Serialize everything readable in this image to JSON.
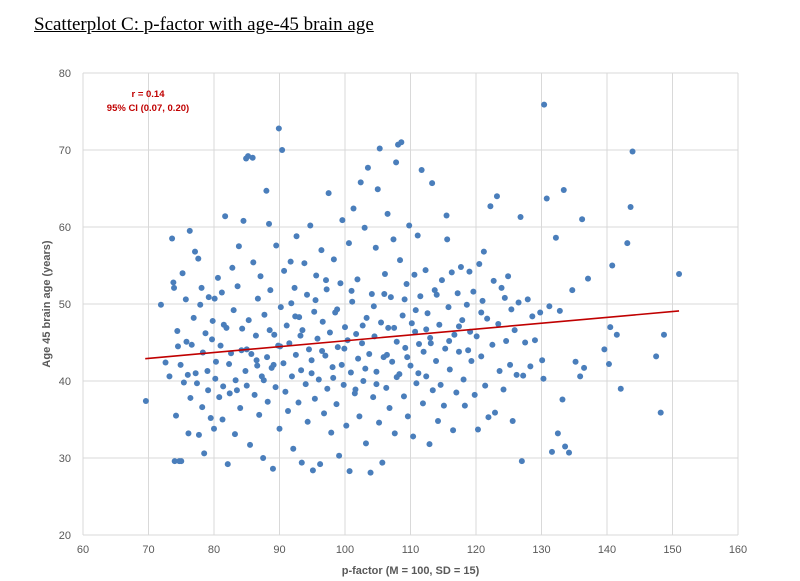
{
  "page_title": "Scatterplot C: p-factor with age-45 brain age",
  "chart_data": {
    "type": "scatter",
    "title": "Scatterplot C: p-factor with age-45 brain age",
    "xlabel": "p-factor (M = 100, SD = 15)",
    "ylabel": "Age 45 brain age (years)",
    "xlim": [
      60,
      160
    ],
    "ylim": [
      20,
      80
    ],
    "xticks": [
      60,
      70,
      80,
      90,
      100,
      110,
      120,
      130,
      140,
      150,
      160
    ],
    "yticks": [
      20,
      30,
      40,
      50,
      60,
      70,
      80
    ],
    "grid": true,
    "legend": "none",
    "point_color": "#4a7ebb",
    "fit_line_color": "#c00000",
    "annotations": [
      "r = 0.14",
      "95% CI (0.07, 0.20)"
    ],
    "fit_line": {
      "x": [
        69.5,
        151
      ],
      "y": [
        42.9,
        49.1
      ]
    },
    "points": [
      [
        69.6,
        37.4
      ],
      [
        71.9,
        49.9
      ],
      [
        72.6,
        42.4
      ],
      [
        73.2,
        40.6
      ],
      [
        73.6,
        58.5
      ],
      [
        73.8,
        52.8
      ],
      [
        73.9,
        52.1
      ],
      [
        74.0,
        29.6
      ],
      [
        74.2,
        35.5
      ],
      [
        74.4,
        46.5
      ],
      [
        74.5,
        44.5
      ],
      [
        74.7,
        29.6
      ],
      [
        74.9,
        42.1
      ],
      [
        75.0,
        29.6
      ],
      [
        75.2,
        54.0
      ],
      [
        75.4,
        39.8
      ],
      [
        75.7,
        50.6
      ],
      [
        75.8,
        45.1
      ],
      [
        76.0,
        40.8
      ],
      [
        76.1,
        33.2
      ],
      [
        76.3,
        59.5
      ],
      [
        76.4,
        37.8
      ],
      [
        76.6,
        44.7
      ],
      [
        76.9,
        48.2
      ],
      [
        77.1,
        56.8
      ],
      [
        77.2,
        41.0
      ],
      [
        77.4,
        39.7
      ],
      [
        77.6,
        55.9
      ],
      [
        77.7,
        33.0
      ],
      [
        77.9,
        49.9
      ],
      [
        78.1,
        52.1
      ],
      [
        78.2,
        36.6
      ],
      [
        78.3,
        43.7
      ],
      [
        78.5,
        30.6
      ],
      [
        78.7,
        46.2
      ],
      [
        79.0,
        41.3
      ],
      [
        79.1,
        38.8
      ],
      [
        79.2,
        50.9
      ],
      [
        79.5,
        35.2
      ],
      [
        79.7,
        45.4
      ],
      [
        79.8,
        47.8
      ],
      [
        80.0,
        33.8
      ],
      [
        80.2,
        40.3
      ],
      [
        80.3,
        42.5
      ],
      [
        80.6,
        53.4
      ],
      [
        80.8,
        37.9
      ],
      [
        81.0,
        44.6
      ],
      [
        81.2,
        51.5
      ],
      [
        81.3,
        35.0
      ],
      [
        81.4,
        39.3
      ],
      [
        81.7,
        61.4
      ],
      [
        81.9,
        46.9
      ],
      [
        82.1,
        29.2
      ],
      [
        82.3,
        42.2
      ],
      [
        82.4,
        38.4
      ],
      [
        82.6,
        43.6
      ],
      [
        82.8,
        54.7
      ],
      [
        83.0,
        49.2
      ],
      [
        83.2,
        33.1
      ],
      [
        83.3,
        40.1
      ],
      [
        83.6,
        52.3
      ],
      [
        83.8,
        57.5
      ],
      [
        84.0,
        36.5
      ],
      [
        84.2,
        44.0
      ],
      [
        84.3,
        46.8
      ],
      [
        84.5,
        60.8
      ],
      [
        84.8,
        41.3
      ],
      [
        84.9,
        68.9
      ],
      [
        85.0,
        39.4
      ],
      [
        85.2,
        69.2
      ],
      [
        85.3,
        47.9
      ],
      [
        85.5,
        31.7
      ],
      [
        85.7,
        43.5
      ],
      [
        85.9,
        69.0
      ],
      [
        86.0,
        55.4
      ],
      [
        86.2,
        38.2
      ],
      [
        86.4,
        45.9
      ],
      [
        86.6,
        42.0
      ],
      [
        86.7,
        50.7
      ],
      [
        86.9,
        35.6
      ],
      [
        87.1,
        53.6
      ],
      [
        87.3,
        40.6
      ],
      [
        87.5,
        30.0
      ],
      [
        87.7,
        48.6
      ],
      [
        88.0,
        64.7
      ],
      [
        88.1,
        43.1
      ],
      [
        88.2,
        37.3
      ],
      [
        88.4,
        60.4
      ],
      [
        88.6,
        51.8
      ],
      [
        88.8,
        41.7
      ],
      [
        89.0,
        28.6
      ],
      [
        89.2,
        46.0
      ],
      [
        89.4,
        39.2
      ],
      [
        89.5,
        57.6
      ],
      [
        89.8,
        44.6
      ],
      [
        89.9,
        72.8
      ],
      [
        90.0,
        33.8
      ],
      [
        90.2,
        49.6
      ],
      [
        90.4,
        70.0
      ],
      [
        90.6,
        42.3
      ],
      [
        90.7,
        54.3
      ],
      [
        90.9,
        38.6
      ],
      [
        91.1,
        47.2
      ],
      [
        91.3,
        36.1
      ],
      [
        91.5,
        44.9
      ],
      [
        91.7,
        55.5
      ],
      [
        91.9,
        40.6
      ],
      [
        92.1,
        31.2
      ],
      [
        92.3,
        52.1
      ],
      [
        92.5,
        43.4
      ],
      [
        92.6,
        58.8
      ],
      [
        92.9,
        37.2
      ],
      [
        93.0,
        48.3
      ],
      [
        93.3,
        41.4
      ],
      [
        93.4,
        29.4
      ],
      [
        93.5,
        46.6
      ],
      [
        93.8,
        55.3
      ],
      [
        94.0,
        39.6
      ],
      [
        94.2,
        51.2
      ],
      [
        94.3,
        34.7
      ],
      [
        94.5,
        44.1
      ],
      [
        94.7,
        60.2
      ],
      [
        94.9,
        42.7
      ],
      [
        95.1,
        28.4
      ],
      [
        95.3,
        49.0
      ],
      [
        95.4,
        37.7
      ],
      [
        95.6,
        53.7
      ],
      [
        95.8,
        45.5
      ],
      [
        96.0,
        40.2
      ],
      [
        96.2,
        29.2
      ],
      [
        96.4,
        57.0
      ],
      [
        96.6,
        47.7
      ],
      [
        96.8,
        35.8
      ],
      [
        97.0,
        43.3
      ],
      [
        97.2,
        51.9
      ],
      [
        97.3,
        39.0
      ],
      [
        97.5,
        64.4
      ],
      [
        97.7,
        46.3
      ],
      [
        97.9,
        33.3
      ],
      [
        98.1,
        41.8
      ],
      [
        98.3,
        55.8
      ],
      [
        98.5,
        48.9
      ],
      [
        98.7,
        37.0
      ],
      [
        98.9,
        44.4
      ],
      [
        99.1,
        30.3
      ],
      [
        99.3,
        52.7
      ],
      [
        99.5,
        42.1
      ],
      [
        99.6,
        60.9
      ],
      [
        99.8,
        39.5
      ],
      [
        100.0,
        47.0
      ],
      [
        100.2,
        34.2
      ],
      [
        100.4,
        45.3
      ],
      [
        100.6,
        57.9
      ],
      [
        100.7,
        28.3
      ],
      [
        100.9,
        41.1
      ],
      [
        101.1,
        50.3
      ],
      [
        101.3,
        62.4
      ],
      [
        101.5,
        38.4
      ],
      [
        101.7,
        46.1
      ],
      [
        101.9,
        53.2
      ],
      [
        102.0,
        42.9
      ],
      [
        102.2,
        35.4
      ],
      [
        102.4,
        65.8
      ],
      [
        102.6,
        44.9
      ],
      [
        102.8,
        40.0
      ],
      [
        103.0,
        59.9
      ],
      [
        103.2,
        31.9
      ],
      [
        103.3,
        48.2
      ],
      [
        103.5,
        67.7
      ],
      [
        103.7,
        43.5
      ],
      [
        103.9,
        28.1
      ],
      [
        104.1,
        51.3
      ],
      [
        104.3,
        37.9
      ],
      [
        104.5,
        45.8
      ],
      [
        104.7,
        57.3
      ],
      [
        104.8,
        41.2
      ],
      [
        105.0,
        64.9
      ],
      [
        105.2,
        34.6
      ],
      [
        105.3,
        70.2
      ],
      [
        105.5,
        47.6
      ],
      [
        105.7,
        29.4
      ],
      [
        105.9,
        43.1
      ],
      [
        106.1,
        53.9
      ],
      [
        106.3,
        39.1
      ],
      [
        106.5,
        61.7
      ],
      [
        106.6,
        46.9
      ],
      [
        106.8,
        36.5
      ],
      [
        107.0,
        50.9
      ],
      [
        107.2,
        42.5
      ],
      [
        107.4,
        58.4
      ],
      [
        107.6,
        33.2
      ],
      [
        107.8,
        68.4
      ],
      [
        107.9,
        45.1
      ],
      [
        108.1,
        70.7
      ],
      [
        108.3,
        40.9
      ],
      [
        108.4,
        55.7
      ],
      [
        108.6,
        71.0
      ],
      [
        108.8,
        48.5
      ],
      [
        109.0,
        38.0
      ],
      [
        109.2,
        44.3
      ],
      [
        109.4,
        52.6
      ],
      [
        109.6,
        35.4
      ],
      [
        109.8,
        60.2
      ],
      [
        110.0,
        42.0
      ],
      [
        110.2,
        47.5
      ],
      [
        110.4,
        32.8
      ],
      [
        110.6,
        53.8
      ],
      [
        110.7,
        46.4
      ],
      [
        110.9,
        39.7
      ],
      [
        111.1,
        58.9
      ],
      [
        111.3,
        44.8
      ],
      [
        111.5,
        51.0
      ],
      [
        111.7,
        67.4
      ],
      [
        111.9,
        37.1
      ],
      [
        112.0,
        43.8
      ],
      [
        112.3,
        54.4
      ],
      [
        112.4,
        40.6
      ],
      [
        112.6,
        48.8
      ],
      [
        112.9,
        31.8
      ],
      [
        113.0,
        45.6
      ],
      [
        113.3,
        65.7
      ],
      [
        113.4,
        38.8
      ],
      [
        113.7,
        51.8
      ],
      [
        113.9,
        42.6
      ],
      [
        114.2,
        34.8
      ],
      [
        114.4,
        47.3
      ],
      [
        114.6,
        39.5
      ],
      [
        114.8,
        53.1
      ],
      [
        115.1,
        36.8
      ],
      [
        115.3,
        44.2
      ],
      [
        115.5,
        61.5
      ],
      [
        115.6,
        58.4
      ],
      [
        115.8,
        49.6
      ],
      [
        116.0,
        41.5
      ],
      [
        116.3,
        54.1
      ],
      [
        116.5,
        33.6
      ],
      [
        116.7,
        46.0
      ],
      [
        117.0,
        38.5
      ],
      [
        117.2,
        51.4
      ],
      [
        117.4,
        43.8
      ],
      [
        117.7,
        54.8
      ],
      [
        117.9,
        47.9
      ],
      [
        118.1,
        40.2
      ],
      [
        118.3,
        36.8
      ],
      [
        118.6,
        49.9
      ],
      [
        118.8,
        44.0
      ],
      [
        119.0,
        54.2
      ],
      [
        119.3,
        42.6
      ],
      [
        119.6,
        51.6
      ],
      [
        119.8,
        38.2
      ],
      [
        120.1,
        45.8
      ],
      [
        120.3,
        33.7
      ],
      [
        120.5,
        55.2
      ],
      [
        120.8,
        43.2
      ],
      [
        121.0,
        50.4
      ],
      [
        121.2,
        56.8
      ],
      [
        121.4,
        39.4
      ],
      [
        121.7,
        48.1
      ],
      [
        121.9,
        35.3
      ],
      [
        122.2,
        62.7
      ],
      [
        122.5,
        44.7
      ],
      [
        122.7,
        53.0
      ],
      [
        122.9,
        35.9
      ],
      [
        123.2,
        64.0
      ],
      [
        123.4,
        47.4
      ],
      [
        123.6,
        41.3
      ],
      [
        123.9,
        52.1
      ],
      [
        124.2,
        38.9
      ],
      [
        124.4,
        50.8
      ],
      [
        124.6,
        45.2
      ],
      [
        124.9,
        53.6
      ],
      [
        125.2,
        42.1
      ],
      [
        125.4,
        49.3
      ],
      [
        125.6,
        34.8
      ],
      [
        125.9,
        46.6
      ],
      [
        126.2,
        40.8
      ],
      [
        126.5,
        50.2
      ],
      [
        126.8,
        61.3
      ],
      [
        127.0,
        29.6
      ],
      [
        127.2,
        40.7
      ],
      [
        127.5,
        45.0
      ],
      [
        127.9,
        50.6
      ],
      [
        128.3,
        41.9
      ],
      [
        128.6,
        48.4
      ],
      [
        129.0,
        45.3
      ],
      [
        129.8,
        48.9
      ],
      [
        130.1,
        42.7
      ],
      [
        130.3,
        40.3
      ],
      [
        130.4,
        75.9
      ],
      [
        130.8,
        63.7
      ],
      [
        131.2,
        49.7
      ],
      [
        131.6,
        30.8
      ],
      [
        132.2,
        58.6
      ],
      [
        132.5,
        33.2
      ],
      [
        132.8,
        49.1
      ],
      [
        133.2,
        37.6
      ],
      [
        133.4,
        64.8
      ],
      [
        133.6,
        31.5
      ],
      [
        134.2,
        30.7
      ],
      [
        134.7,
        51.8
      ],
      [
        135.2,
        42.5
      ],
      [
        135.9,
        40.6
      ],
      [
        136.2,
        61.0
      ],
      [
        136.5,
        41.7
      ],
      [
        137.1,
        53.3
      ],
      [
        139.6,
        44.1
      ],
      [
        140.3,
        42.2
      ],
      [
        140.5,
        47.0
      ],
      [
        140.8,
        55.0
      ],
      [
        141.5,
        46.0
      ],
      [
        142.1,
        39.0
      ],
      [
        143.1,
        57.9
      ],
      [
        143.6,
        62.6
      ],
      [
        143.9,
        69.8
      ],
      [
        147.5,
        43.2
      ],
      [
        148.2,
        35.9
      ],
      [
        148.7,
        46.0
      ],
      [
        151.0,
        53.9
      ],
      [
        80.1,
        50.7
      ],
      [
        81.5,
        47.3
      ],
      [
        83.5,
        38.8
      ],
      [
        86.5,
        42.7
      ],
      [
        88.5,
        46.6
      ],
      [
        90.1,
        44.5
      ],
      [
        91.8,
        50.1
      ],
      [
        93.2,
        45.9
      ],
      [
        94.9,
        41.0
      ],
      [
        96.5,
        43.9
      ],
      [
        98.2,
        40.4
      ],
      [
        99.9,
        44.2
      ],
      [
        101.6,
        38.9
      ],
      [
        103.1,
        41.6
      ],
      [
        104.8,
        39.6
      ],
      [
        106.4,
        43.4
      ],
      [
        107.9,
        40.5
      ],
      [
        109.5,
        43.1
      ],
      [
        111.2,
        41.0
      ],
      [
        113.1,
        44.9
      ],
      [
        98.8,
        49.3
      ],
      [
        97.1,
        53.1
      ],
      [
        95.5,
        50.5
      ],
      [
        92.4,
        48.4
      ],
      [
        89.1,
        42.1
      ],
      [
        87.6,
        40.1
      ],
      [
        85.0,
        44.1
      ],
      [
        101.0,
        51.7
      ],
      [
        102.7,
        47.2
      ],
      [
        104.4,
        49.7
      ],
      [
        106.0,
        51.3
      ],
      [
        107.5,
        46.9
      ],
      [
        109.1,
        50.6
      ],
      [
        110.8,
        49.2
      ],
      [
        112.4,
        46.7
      ],
      [
        114.0,
        51.2
      ],
      [
        115.9,
        45.2
      ],
      [
        117.4,
        47.1
      ],
      [
        119.1,
        46.4
      ],
      [
        120.8,
        48.9
      ]
    ]
  }
}
